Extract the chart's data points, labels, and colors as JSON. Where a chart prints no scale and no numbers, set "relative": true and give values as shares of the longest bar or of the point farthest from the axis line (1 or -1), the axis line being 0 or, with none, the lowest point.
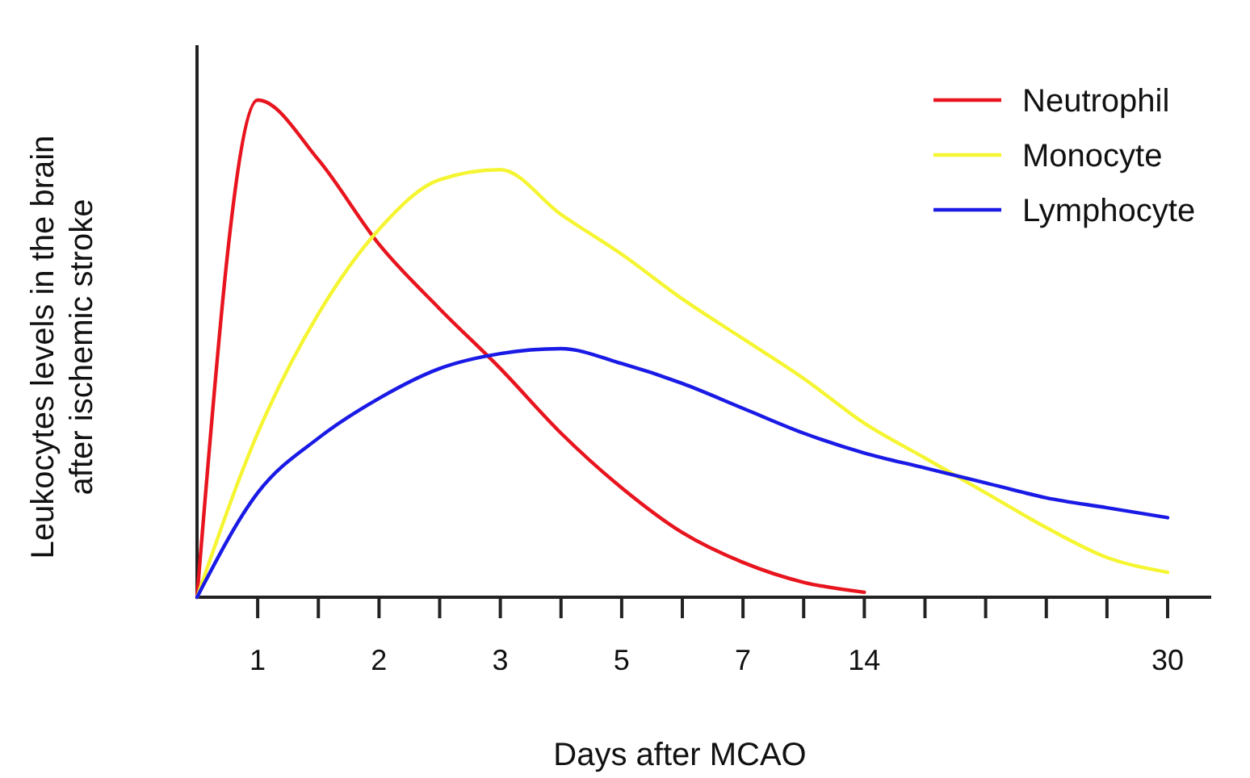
{
  "chart_data": {
    "type": "line",
    "relative": true,
    "xlabel": "Days after MCAO",
    "ylabel": "Leukocytes levels in the brain\nafter ischemic stroke",
    "categories": [
      null,
      "1",
      null,
      "2",
      null,
      "3",
      null,
      "5",
      null,
      "7",
      null,
      "14",
      null,
      null,
      null,
      null,
      "30"
    ],
    "legend": "top right",
    "grid": false,
    "marker": "none",
    "line_style": "solid",
    "series": [
      {
        "name": "Neutrophil",
        "color": "#e8141e",
        "values": [
          0,
          1.0,
          0.88,
          0.71,
          0.58,
          0.46,
          0.33,
          0.22,
          0.13,
          0.07,
          0.03,
          0.01,
          null,
          null,
          null,
          null,
          null
        ]
      },
      {
        "name": "Monocyte",
        "color": "#f5f532",
        "values": [
          0,
          0.33,
          0.57,
          0.74,
          0.84,
          0.86,
          0.77,
          0.69,
          0.6,
          0.52,
          0.44,
          0.35,
          0.28,
          0.21,
          0.14,
          0.08,
          0.05
        ]
      },
      {
        "name": "Lymphocyte",
        "color": "#1a1ae6",
        "values": [
          0,
          0.21,
          0.32,
          0.4,
          0.46,
          0.49,
          0.5,
          0.47,
          0.43,
          0.38,
          0.33,
          0.29,
          0.26,
          0.23,
          0.2,
          0.18,
          0.16
        ]
      }
    ]
  }
}
